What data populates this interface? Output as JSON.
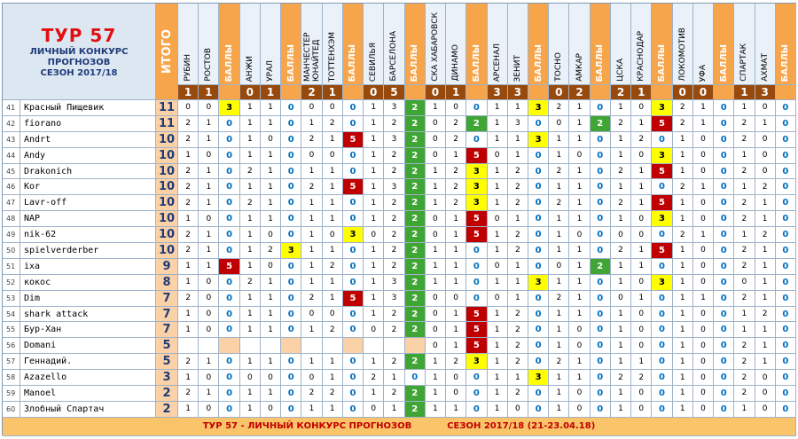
{
  "header": {
    "title": "ТУР 57",
    "lines": [
      "ЛИЧНЫЙ КОНКУРС",
      "ПРОГНОЗОВ",
      "СЕЗОН 2017/18"
    ],
    "total_label": "ИТОГО",
    "points_label": "БАЛЛЫ"
  },
  "matches": [
    {
      "home": "РУБИН",
      "away": "РОСТОВ",
      "score": [
        1,
        1
      ]
    },
    {
      "home": "АНЖИ",
      "away": "УРАЛ",
      "score": [
        0,
        1
      ]
    },
    {
      "home": "МАНЧЕСТЕР ЮНАЙТЕД",
      "away": "ТОТТЕНХЭМ",
      "score": [
        2,
        1
      ]
    },
    {
      "home": "СЕВИЛЬЯ",
      "away": "БАРСЕЛОНА",
      "score": [
        0,
        5
      ]
    },
    {
      "home": "СКА ХАБАРОВСК",
      "away": "ДИНАМО",
      "score": [
        0,
        1
      ]
    },
    {
      "home": "АРСЕНАЛ",
      "away": "ЗЕНИТ",
      "score": [
        3,
        3
      ]
    },
    {
      "home": "ТОСНО",
      "away": "АМКАР",
      "score": [
        0,
        2
      ]
    },
    {
      "home": "ЦСКА",
      "away": "КРАСНОДАР",
      "score": [
        2,
        1
      ]
    },
    {
      "home": "ЛОКОМОТИВ",
      "away": "УФА",
      "score": [
        0,
        0
      ]
    },
    {
      "home": "СПАРТАК",
      "away": "АХМАТ",
      "score": [
        1,
        3
      ]
    }
  ],
  "rows": [
    {
      "rank": 41,
      "name": "Красный Пищевик",
      "total": 11,
      "predictions": [
        [
          0,
          0,
          3
        ],
        [
          1,
          1,
          0
        ],
        [
          0,
          0,
          0
        ],
        [
          1,
          3,
          2
        ],
        [
          1,
          0,
          0
        ],
        [
          1,
          1,
          3
        ],
        [
          2,
          1,
          0
        ],
        [
          1,
          0,
          3
        ],
        [
          2,
          1,
          0
        ],
        [
          1,
          0,
          0
        ]
      ]
    },
    {
      "rank": 42,
      "name": "fiorano",
      "total": 11,
      "predictions": [
        [
          2,
          1,
          0
        ],
        [
          1,
          1,
          0
        ],
        [
          1,
          2,
          0
        ],
        [
          1,
          2,
          2
        ],
        [
          0,
          2,
          2
        ],
        [
          1,
          3,
          0
        ],
        [
          0,
          1,
          2
        ],
        [
          2,
          1,
          5
        ],
        [
          2,
          1,
          0
        ],
        [
          2,
          1,
          0
        ]
      ]
    },
    {
      "rank": 43,
      "name": "Andrt",
      "total": 10,
      "predictions": [
        [
          2,
          1,
          0
        ],
        [
          1,
          0,
          0
        ],
        [
          2,
          1,
          5
        ],
        [
          1,
          3,
          2
        ],
        [
          0,
          2,
          0
        ],
        [
          1,
          1,
          3
        ],
        [
          1,
          1,
          0
        ],
        [
          1,
          2,
          0
        ],
        [
          1,
          0,
          0
        ],
        [
          2,
          0,
          0
        ]
      ]
    },
    {
      "rank": 44,
      "name": "Andy",
      "total": 10,
      "predictions": [
        [
          1,
          0,
          0
        ],
        [
          1,
          1,
          0
        ],
        [
          0,
          0,
          0
        ],
        [
          1,
          2,
          2
        ],
        [
          0,
          1,
          5
        ],
        [
          0,
          1,
          0
        ],
        [
          1,
          0,
          0
        ],
        [
          1,
          0,
          3
        ],
        [
          1,
          0,
          0
        ],
        [
          1,
          0,
          0
        ]
      ]
    },
    {
      "rank": 45,
      "name": "Drakonich",
      "total": 10,
      "predictions": [
        [
          2,
          1,
          0
        ],
        [
          2,
          1,
          0
        ],
        [
          1,
          1,
          0
        ],
        [
          1,
          2,
          2
        ],
        [
          1,
          2,
          3
        ],
        [
          1,
          2,
          0
        ],
        [
          2,
          1,
          0
        ],
        [
          2,
          1,
          5
        ],
        [
          1,
          0,
          0
        ],
        [
          2,
          0,
          0
        ]
      ]
    },
    {
      "rank": 46,
      "name": "Kor",
      "total": 10,
      "predictions": [
        [
          2,
          1,
          0
        ],
        [
          1,
          1,
          0
        ],
        [
          2,
          1,
          5
        ],
        [
          1,
          3,
          2
        ],
        [
          1,
          2,
          3
        ],
        [
          1,
          2,
          0
        ],
        [
          1,
          1,
          0
        ],
        [
          1,
          1,
          0
        ],
        [
          2,
          1,
          0
        ],
        [
          1,
          2,
          0
        ]
      ]
    },
    {
      "rank": 47,
      "name": "Lavr-off",
      "total": 10,
      "predictions": [
        [
          2,
          1,
          0
        ],
        [
          2,
          1,
          0
        ],
        [
          1,
          1,
          0
        ],
        [
          1,
          2,
          2
        ],
        [
          1,
          2,
          3
        ],
        [
          1,
          2,
          0
        ],
        [
          2,
          1,
          0
        ],
        [
          2,
          1,
          5
        ],
        [
          1,
          0,
          0
        ],
        [
          2,
          1,
          0
        ]
      ]
    },
    {
      "rank": 48,
      "name": "NAP",
      "total": 10,
      "predictions": [
        [
          1,
          0,
          0
        ],
        [
          1,
          1,
          0
        ],
        [
          1,
          1,
          0
        ],
        [
          1,
          2,
          2
        ],
        [
          0,
          1,
          5
        ],
        [
          0,
          1,
          0
        ],
        [
          1,
          1,
          0
        ],
        [
          1,
          0,
          3
        ],
        [
          1,
          0,
          0
        ],
        [
          2,
          1,
          0
        ]
      ]
    },
    {
      "rank": 49,
      "name": "nik-62",
      "total": 10,
      "predictions": [
        [
          2,
          1,
          0
        ],
        [
          1,
          0,
          0
        ],
        [
          1,
          0,
          3
        ],
        [
          0,
          2,
          2
        ],
        [
          0,
          1,
          5
        ],
        [
          1,
          2,
          0
        ],
        [
          1,
          0,
          0
        ],
        [
          0,
          0,
          0
        ],
        [
          2,
          1,
          0
        ],
        [
          1,
          2,
          0
        ]
      ]
    },
    {
      "rank": 50,
      "name": "spielverderber",
      "total": 10,
      "predictions": [
        [
          2,
          1,
          0
        ],
        [
          1,
          2,
          3
        ],
        [
          1,
          1,
          0
        ],
        [
          1,
          2,
          2
        ],
        [
          1,
          1,
          0
        ],
        [
          1,
          2,
          0
        ],
        [
          1,
          1,
          0
        ],
        [
          2,
          1,
          5
        ],
        [
          1,
          0,
          0
        ],
        [
          2,
          1,
          0
        ]
      ]
    },
    {
      "rank": 51,
      "name": "ixa",
      "total": 9,
      "predictions": [
        [
          1,
          1,
          5
        ],
        [
          1,
          0,
          0
        ],
        [
          1,
          2,
          0
        ],
        [
          1,
          2,
          2
        ],
        [
          1,
          1,
          0
        ],
        [
          0,
          1,
          0
        ],
        [
          0,
          1,
          2
        ],
        [
          1,
          1,
          0
        ],
        [
          1,
          0,
          0
        ],
        [
          2,
          1,
          0
        ]
      ]
    },
    {
      "rank": 52,
      "name": "кокос",
      "total": 8,
      "predictions": [
        [
          1,
          0,
          0
        ],
        [
          2,
          1,
          0
        ],
        [
          1,
          1,
          0
        ],
        [
          1,
          3,
          2
        ],
        [
          1,
          1,
          0
        ],
        [
          1,
          1,
          3
        ],
        [
          1,
          1,
          0
        ],
        [
          1,
          0,
          3
        ],
        [
          1,
          0,
          0
        ],
        [
          0,
          1,
          0
        ]
      ]
    },
    {
      "rank": 53,
      "name": "Dim",
      "total": 7,
      "predictions": [
        [
          2,
          0,
          0
        ],
        [
          1,
          1,
          0
        ],
        [
          2,
          1,
          5
        ],
        [
          1,
          3,
          2
        ],
        [
          0,
          0,
          0
        ],
        [
          0,
          1,
          0
        ],
        [
          2,
          1,
          0
        ],
        [
          0,
          1,
          0
        ],
        [
          1,
          1,
          0
        ],
        [
          2,
          1,
          0
        ]
      ]
    },
    {
      "rank": 54,
      "name": "shark attack",
      "total": 7,
      "predictions": [
        [
          1,
          0,
          0
        ],
        [
          1,
          1,
          0
        ],
        [
          0,
          0,
          0
        ],
        [
          1,
          2,
          2
        ],
        [
          0,
          1,
          5
        ],
        [
          1,
          2,
          0
        ],
        [
          1,
          1,
          0
        ],
        [
          1,
          0,
          0
        ],
        [
          1,
          0,
          0
        ],
        [
          1,
          2,
          0
        ]
      ]
    },
    {
      "rank": 55,
      "name": "Бур-Хан",
      "total": 7,
      "predictions": [
        [
          1,
          0,
          0
        ],
        [
          1,
          1,
          0
        ],
        [
          1,
          2,
          0
        ],
        [
          0,
          2,
          2
        ],
        [
          0,
          1,
          5
        ],
        [
          1,
          2,
          0
        ],
        [
          1,
          0,
          0
        ],
        [
          1,
          0,
          0
        ],
        [
          1,
          0,
          0
        ],
        [
          1,
          1,
          0
        ]
      ]
    },
    {
      "rank": 56,
      "name": "Domani",
      "total": 5,
      "predictions": [
        [
          null,
          null,
          null
        ],
        [
          null,
          null,
          null
        ],
        [
          null,
          null,
          null
        ],
        [
          null,
          null,
          null
        ],
        [
          0,
          1,
          5
        ],
        [
          1,
          2,
          0
        ],
        [
          1,
          0,
          0
        ],
        [
          1,
          0,
          0
        ],
        [
          1,
          0,
          0
        ],
        [
          2,
          1,
          0
        ]
      ]
    },
    {
      "rank": 57,
      "name": "Геннадий.",
      "total": 5,
      "predictions": [
        [
          2,
          1,
          0
        ],
        [
          1,
          1,
          0
        ],
        [
          1,
          1,
          0
        ],
        [
          1,
          2,
          2
        ],
        [
          1,
          2,
          3
        ],
        [
          1,
          2,
          0
        ],
        [
          2,
          1,
          0
        ],
        [
          1,
          1,
          0
        ],
        [
          1,
          0,
          0
        ],
        [
          2,
          1,
          0
        ]
      ]
    },
    {
      "rank": 58,
      "name": "Azazello",
      "total": 3,
      "predictions": [
        [
          1,
          0,
          0
        ],
        [
          0,
          0,
          0
        ],
        [
          0,
          1,
          0
        ],
        [
          2,
          1,
          0
        ],
        [
          1,
          0,
          0
        ],
        [
          1,
          1,
          3
        ],
        [
          1,
          1,
          0
        ],
        [
          2,
          2,
          0
        ],
        [
          1,
          0,
          0
        ],
        [
          2,
          0,
          0
        ]
      ]
    },
    {
      "rank": 59,
      "name": "Manoel",
      "total": 2,
      "predictions": [
        [
          2,
          1,
          0
        ],
        [
          1,
          1,
          0
        ],
        [
          2,
          2,
          0
        ],
        [
          1,
          2,
          2
        ],
        [
          1,
          0,
          0
        ],
        [
          1,
          2,
          0
        ],
        [
          1,
          0,
          0
        ],
        [
          1,
          0,
          0
        ],
        [
          1,
          0,
          0
        ],
        [
          2,
          0,
          0
        ]
      ]
    },
    {
      "rank": 60,
      "name": "Злобный Спартач",
      "total": 2,
      "predictions": [
        [
          1,
          0,
          0
        ],
        [
          1,
          0,
          0
        ],
        [
          1,
          1,
          0
        ],
        [
          0,
          1,
          2
        ],
        [
          1,
          1,
          0
        ],
        [
          1,
          0,
          0
        ],
        [
          1,
          0,
          0
        ],
        [
          1,
          0,
          0
        ],
        [
          1,
          0,
          0
        ],
        [
          1,
          0,
          0
        ]
      ]
    }
  ],
  "footer": [
    "ТУР 57 - ЛИЧНЫЙ КОНКУРС ПРОГНОЗОВ",
    "СЕЗОН 2017/18 (21-23.04.18)"
  ]
}
